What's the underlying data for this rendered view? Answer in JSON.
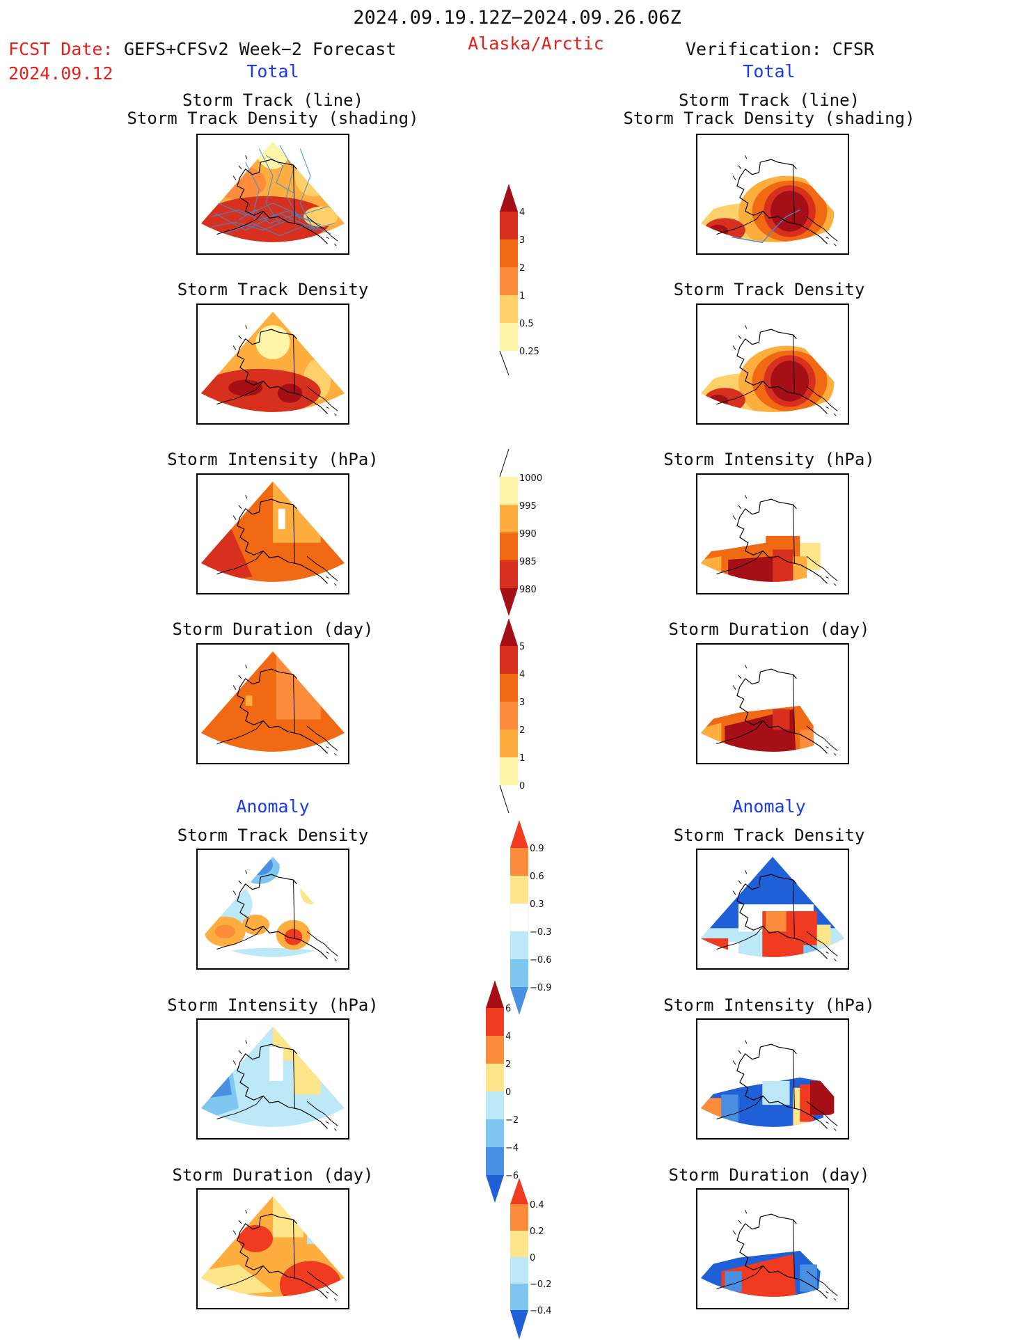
{
  "header": {
    "period": "2024.09.19.12Z−2024.09.26.06Z",
    "region": "Alaska/Arctic",
    "fcst_label": "FCST Date:",
    "fcst_model": "GEFS+CFSv2 Week−2 Forecast",
    "fcst_date": "2024.09.12",
    "verification": "Verification: CFSR"
  },
  "section_labels": {
    "total": "Total",
    "anomaly": "Anomaly"
  },
  "panel_titles": {
    "track_line": "Storm Track (line)",
    "track_density_shading": "Storm Track Density (shading)",
    "track_density": "Storm Track Density",
    "intensity": "Storm Intensity (hPa)",
    "duration": "Storm Duration (day)"
  },
  "colorbars": {
    "density_total": {
      "ticks": [
        "4",
        "3",
        "2",
        "1",
        "0.5",
        "0.25"
      ],
      "colors": [
        "#a50f15",
        "#d7301f",
        "#f16913",
        "#fd8d3c",
        "#fdae3f",
        "#fdd06a",
        "#fff5a8"
      ]
    },
    "intensity_total": {
      "ticks": [
        "1000",
        "995",
        "990",
        "985",
        "980"
      ],
      "colors": [
        "#fff5a8",
        "#fdae3f",
        "#f16913",
        "#d7301f",
        "#a50f15"
      ]
    },
    "duration_total": {
      "ticks": [
        "5",
        "4",
        "3",
        "2",
        "1",
        "0"
      ],
      "colors": [
        "#a50f15",
        "#d7301f",
        "#f16913",
        "#fd8d3c",
        "#fdae3f",
        "#fdd06a",
        "#fff5a8"
      ]
    },
    "density_anom": {
      "ticks": [
        "0.9",
        "0.6",
        "0.3",
        "−0.3",
        "−0.6",
        "−0.9"
      ],
      "colors": [
        "#f03b20",
        "#fd8d3c",
        "#fdae3f",
        "#fde68a",
        "#ffffff",
        "#bde8f7",
        "#7fc6f0",
        "#4a90e2",
        "#1f5fd8"
      ]
    },
    "intensity_anom": {
      "ticks": [
        "6",
        "4",
        "2",
        "0",
        "−2",
        "−4",
        "−6"
      ],
      "colors": [
        "#a50f15",
        "#f03b20",
        "#fd8d3c",
        "#fde68a",
        "#bde8f7",
        "#7fc6f0",
        "#4a90e2",
        "#1f5fd8"
      ]
    },
    "duration_anom": {
      "ticks": [
        "0.4",
        "0.2",
        "0",
        "−0.2",
        "−0.4"
      ],
      "colors": [
        "#f03b20",
        "#fd8d3c",
        "#fde68a",
        "#bde8f7",
        "#7fc6f0",
        "#1f5fd8"
      ]
    }
  }
}
